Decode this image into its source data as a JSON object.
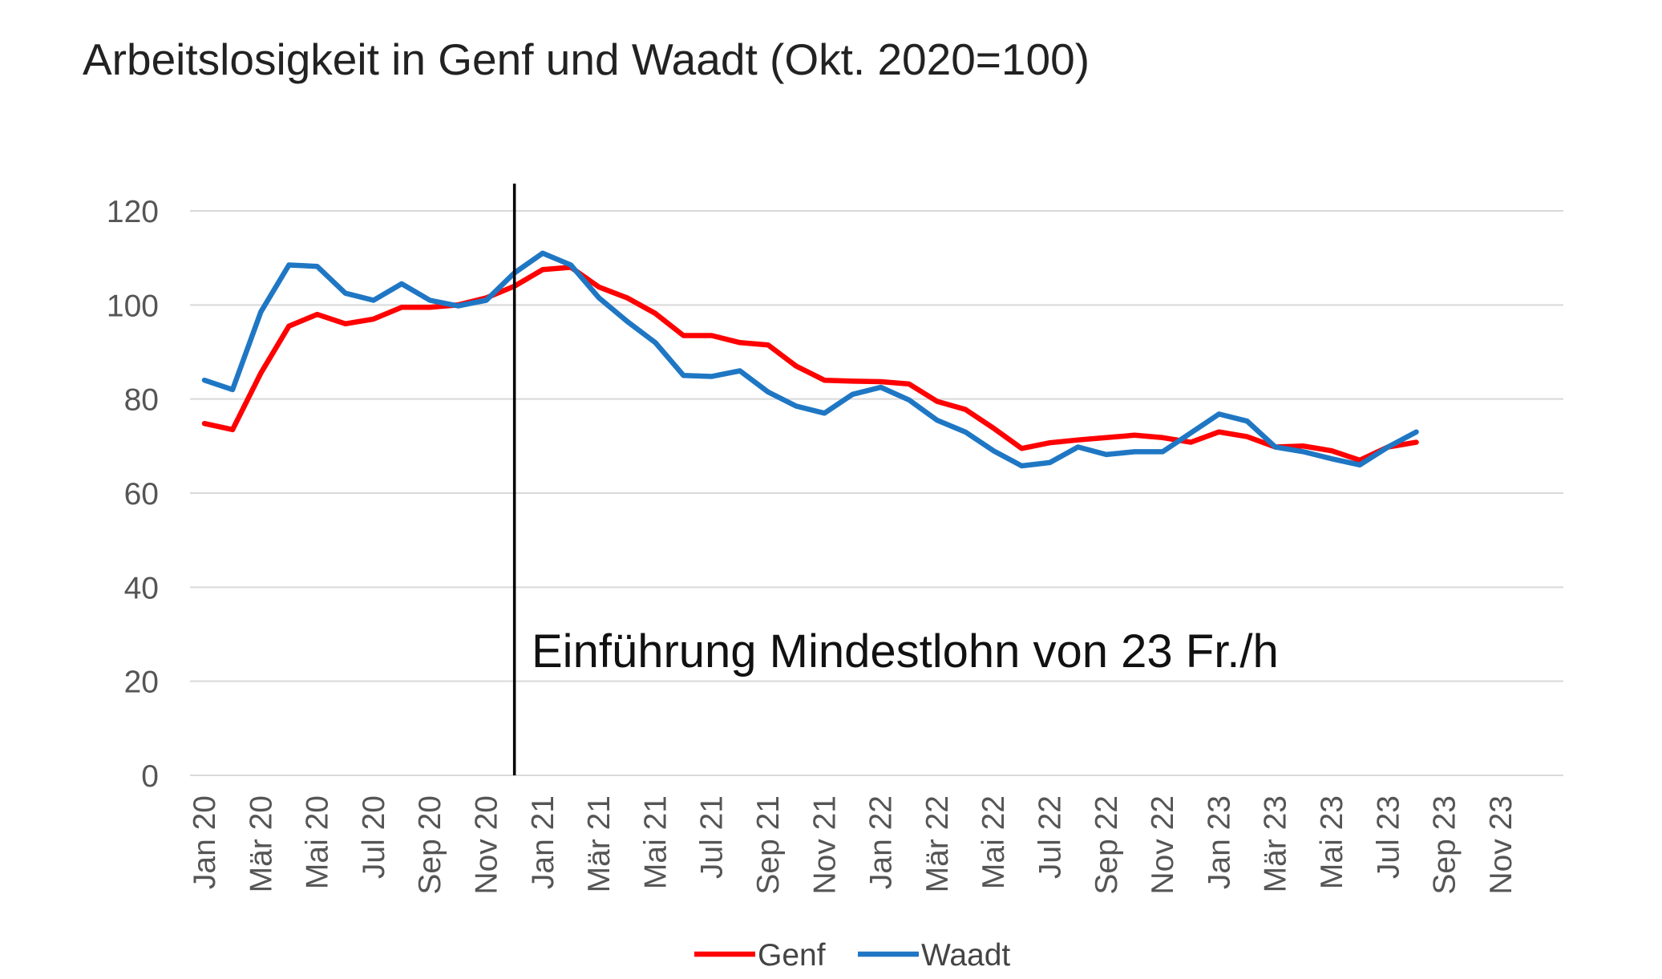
{
  "chart_data": {
    "type": "line",
    "title": "Arbeitslosigkeit in Genf und Waadt (Okt. 2020=100)",
    "xlabel": "",
    "ylabel": "",
    "ylim": [
      0,
      120
    ],
    "yticks": [
      0,
      20,
      40,
      60,
      80,
      100,
      120
    ],
    "grid": true,
    "legend_position": "bottom",
    "x": [
      "Jan 20",
      "Feb 20",
      "Mär 20",
      "Apr 20",
      "Mai 20",
      "Jun 20",
      "Jul 20",
      "Aug 20",
      "Sep 20",
      "Okt 20",
      "Nov 20",
      "Dez 20",
      "Jan 21",
      "Feb 21",
      "Mär 21",
      "Apr 21",
      "Mai 21",
      "Jun 21",
      "Jul 21",
      "Aug 21",
      "Sep 21",
      "Okt 21",
      "Nov 21",
      "Dez 21",
      "Jan 22",
      "Feb 22",
      "Mär 22",
      "Apr 22",
      "Mai 22",
      "Jun 22",
      "Jul 22",
      "Aug 22",
      "Sep 22",
      "Okt 22",
      "Nov 22",
      "Dez 22",
      "Jan 23",
      "Feb 23",
      "Mär 23",
      "Apr 23",
      "Mai 23",
      "Jun 23",
      "Jul 23",
      "Aug 23",
      "Sep 23",
      "Okt 23",
      "Nov 23",
      "Dez 23"
    ],
    "xtick_labels": [
      "Jan 20",
      "Mär 20",
      "Mai 20",
      "Jul 20",
      "Sep 20",
      "Nov 20",
      "Jan 21",
      "Mär 21",
      "Mai 21",
      "Jul 21",
      "Sep 21",
      "Nov 21",
      "Jan 22",
      "Mär 22",
      "Mai 22",
      "Jul 22",
      "Sep 22",
      "Nov 22",
      "Jan 23",
      "Mär 23",
      "Mai 23",
      "Jul 23",
      "Sep 23",
      "Nov 23"
    ],
    "series": [
      {
        "name": "Genf",
        "color": "#ff0000",
        "values": [
          74.8,
          73.5,
          85.5,
          95.5,
          98.0,
          96.0,
          97.0,
          99.5,
          99.5,
          100.0,
          101.5,
          104.0,
          107.5,
          108.0,
          103.8,
          101.5,
          98.2,
          93.5,
          93.5,
          92.0,
          91.5,
          87.0,
          84.0,
          83.8,
          83.7,
          83.2,
          79.5,
          77.8,
          73.8,
          69.5,
          70.7,
          71.3,
          71.8,
          72.3,
          71.8,
          70.8,
          73.0,
          72.0,
          69.8,
          70.0,
          69.0,
          67.0,
          69.8,
          70.8,
          null,
          null,
          null,
          null
        ]
      },
      {
        "name": "Waadt",
        "color": "#1f77c4",
        "values": [
          84.0,
          82.0,
          98.5,
          108.5,
          108.2,
          102.5,
          101.0,
          104.5,
          101.0,
          99.8,
          101.0,
          106.8,
          111.0,
          108.5,
          101.5,
          96.5,
          92.0,
          85.0,
          84.8,
          86.0,
          81.5,
          78.5,
          77.0,
          81.0,
          82.5,
          79.8,
          75.5,
          73.0,
          69.0,
          65.8,
          66.5,
          69.8,
          68.2,
          68.8,
          68.8,
          72.8,
          76.8,
          75.3,
          69.8,
          68.8,
          67.3,
          66.0,
          69.8,
          73.0,
          null,
          null,
          null,
          null
        ]
      }
    ],
    "annotations": [
      {
        "type": "vline",
        "at": "Dez 20",
        "color": "#000000"
      },
      {
        "type": "text",
        "text": "Einführung Mindestlohn von 23 Fr./h"
      }
    ]
  }
}
